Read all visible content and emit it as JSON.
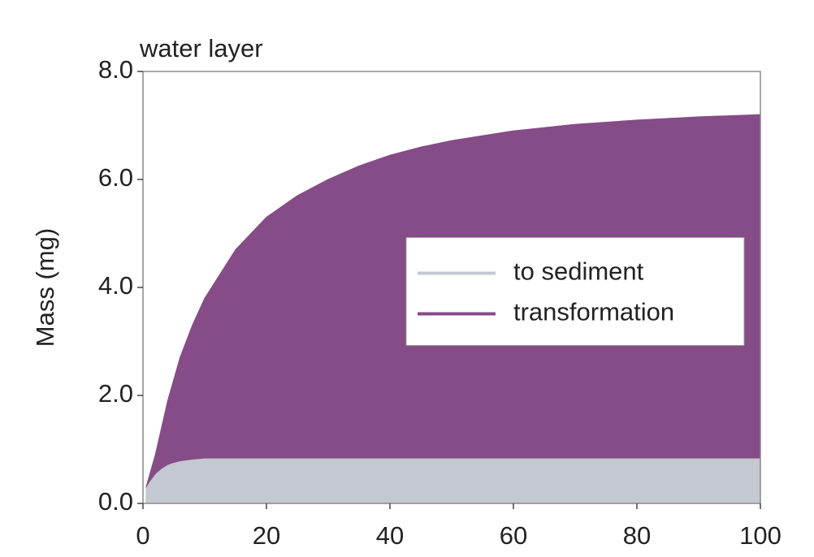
{
  "chart_data": {
    "type": "stacked_area",
    "title": "water layer",
    "y_label": "Mass (mg)",
    "x": [
      0.5,
      1,
      2,
      3,
      4,
      5,
      6,
      8,
      10,
      15,
      20,
      25,
      30,
      35,
      40,
      45,
      50,
      60,
      70,
      80,
      90,
      100
    ],
    "series": [
      {
        "name": "to sediment",
        "color": "#c4c8d0",
        "values": [
          0.3,
          0.4,
          0.55,
          0.65,
          0.72,
          0.76,
          0.79,
          0.82,
          0.84,
          0.84,
          0.84,
          0.84,
          0.84,
          0.84,
          0.84,
          0.84,
          0.84,
          0.84,
          0.84,
          0.84,
          0.84,
          0.84
        ]
      },
      {
        "name": "transformation",
        "color": "#864c87",
        "values": [
          0,
          0.1,
          0.35,
          0.75,
          1.18,
          1.54,
          1.91,
          2.48,
          2.96,
          3.86,
          4.46,
          4.86,
          5.16,
          5.41,
          5.61,
          5.76,
          5.88,
          6.06,
          6.18,
          6.26,
          6.32,
          6.36
        ]
      }
    ],
    "xlim": [
      0,
      100
    ],
    "xticks": [
      0,
      20,
      40,
      60,
      80,
      100
    ],
    "ylim": [
      0,
      8
    ],
    "yticks": [
      {
        "value": 0,
        "label": "0.0"
      },
      {
        "value": 2,
        "label": "2.0"
      },
      {
        "value": 4,
        "label": "4.0"
      },
      {
        "value": 6,
        "label": "6.0"
      },
      {
        "value": 8,
        "label": "8.0"
      }
    ],
    "legend": "right"
  }
}
